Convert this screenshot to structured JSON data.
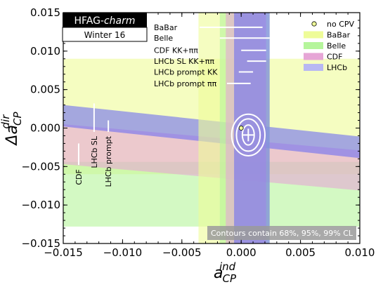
{
  "chart_data": {
    "type": "scatter",
    "title": "",
    "xlabel": "a",
    "xlabel_sup": "ind",
    "xlabel_sub": "CP",
    "ylabel": "Δa",
    "ylabel_sup": "dir",
    "ylabel_sub": "CP",
    "xlim": [
      -0.015,
      0.01
    ],
    "ylim": [
      -0.015,
      0.015
    ],
    "xticks": [
      -0.015,
      -0.01,
      -0.005,
      0.0,
      0.005,
      0.01
    ],
    "xtick_labels": [
      "−0.015",
      "−0.010",
      "−0.005",
      "0.000",
      "0.005",
      "0.010"
    ],
    "yticks": [
      -0.015,
      -0.01,
      -0.005,
      0.0,
      0.005,
      0.01,
      0.015
    ],
    "ytick_labels": [
      "−0.015",
      "−0.010",
      "−0.005",
      "0.000",
      "0.005",
      "0.010",
      "0.015"
    ],
    "grid": false,
    "hfag_title": "HFAG-",
    "hfag_title_italic": "charm",
    "hfag_subtitle": "Winter 16",
    "no_cpv_point": {
      "x": 0.0,
      "y": 0.0,
      "label": "no CPV"
    },
    "best_fit": {
      "x": 0.0006,
      "y": -0.0009
    },
    "contours_note": "Contours contain 68%, 95%, 99% CL",
    "contours": [
      {
        "cl": "68%",
        "rx": 0.0005,
        "ry": 0.0013
      },
      {
        "cl": "95%",
        "rx": 0.001,
        "ry": 0.0021
      },
      {
        "cl": "99%",
        "rx": 0.0014,
        "ry": 0.0027
      }
    ],
    "vertical_bands": [
      {
        "name": "BaBar",
        "color": "#eefc98",
        "xmin": -0.0036,
        "xmax": 0.0016
      },
      {
        "name": "Belle",
        "color": "#b5f59b",
        "xmin": -0.0018,
        "xmax": 0.0024
      },
      {
        "name": "CDF",
        "color": "#e6a6d6",
        "xmin": -0.0013,
        "xmax": 0.0021
      },
      {
        "name": "LHCb",
        "color": "#6e6ef2",
        "xmin": -0.0006,
        "xmax": 0.0024
      }
    ],
    "diagonal_bands": [
      {
        "name": "BaBar",
        "color": "#eefc98",
        "y_center_left": 0.0015,
        "y_center_right": 0.0015,
        "half_width": 0.0075,
        "xmax": 0.01
      },
      {
        "name": "Belle",
        "color": "#b5f59b",
        "y_center_left": -0.0086,
        "y_center_right": -0.0086,
        "half_width": 0.0042,
        "xmax": 0.0103
      },
      {
        "name": "CDF",
        "color": "#e6a6d6",
        "y_center_left": -0.0021,
        "y_center_right": -0.0055,
        "half_width": 0.0026,
        "xmax": 0.01
      },
      {
        "name": "LHCb",
        "color": "#6e6ef2",
        "y_center_left": 0.0016,
        "y_center_right": -0.0025,
        "half_width": 0.0014,
        "xmax": 0.01
      }
    ],
    "input_lines": [
      {
        "label": "BaBar",
        "x1": -0.0035,
        "x2": 0.0018,
        "y": 0.0131
      },
      {
        "label": "Belle",
        "x1": -0.0018,
        "x2": 0.0024,
        "y": 0.0117
      },
      {
        "label": "CDF KK+ππ",
        "x1": 0.0,
        "x2": 0.0021,
        "y": 0.0101
      },
      {
        "label": "LHCb SL KK+ππ",
        "x1": 0.0005,
        "x2": 0.0021,
        "y": 0.0087
      },
      {
        "label": "LHCb prompt KK",
        "x1": -0.0002,
        "x2": 0.001,
        "y": 0.0073
      },
      {
        "label": "LHCb prompt ππ",
        "x1": -0.0012,
        "x2": 0.0008,
        "y": 0.0058
      }
    ],
    "average_markers": [
      {
        "label": "CDF",
        "x": -0.0137,
        "y1": -0.0048,
        "y2": -0.002
      },
      {
        "label": "LHCb SL",
        "x": -0.0124,
        "y1": -0.0005,
        "y2": 0.0032
      },
      {
        "label": "LHCb prompt",
        "x": -0.0112,
        "y1": -0.0005,
        "y2": 0.001
      }
    ],
    "legend": {
      "placement": "top-right",
      "entries": [
        {
          "label": "no CPV",
          "kind": "marker",
          "color": "#eefc98"
        },
        {
          "label": "BaBar",
          "kind": "patch",
          "color": "#eefc98"
        },
        {
          "label": "Belle",
          "kind": "patch",
          "color": "#b5f59b"
        },
        {
          "label": "CDF",
          "kind": "patch",
          "color": "#e6a6d6"
        },
        {
          "label": "LHCb",
          "kind": "patch",
          "color": "#b8b8f3"
        }
      ]
    }
  }
}
